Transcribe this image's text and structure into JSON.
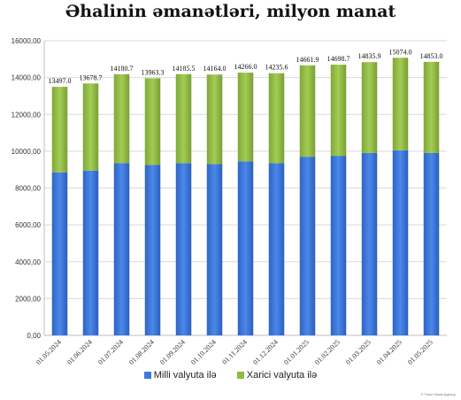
{
  "chart_data": {
    "type": "bar",
    "stacked": true,
    "title": "Əhalinin əmanətləri, milyon manat",
    "categories": [
      "01.05.2024",
      "01.06.2024",
      "01.07.2024",
      "01.08.2024",
      "01.09.2024",
      "01.10.2024",
      "01.11.2024",
      "01.12.2024",
      "01.01.2025",
      "01.02.2025",
      "01.03.2025",
      "01.04.2025",
      "01.05.2025"
    ],
    "series": [
      {
        "name": "Milli valyuta ilə",
        "color": "#3d7ae0",
        "values": [
          8850,
          8950,
          9350,
          9250,
          9350,
          9300,
          9450,
          9350,
          9700,
          9750,
          9900,
          10050,
          9900
        ]
      },
      {
        "name": "Xarici valyuta ilə",
        "color": "#8fbc3f",
        "values": [
          4647,
          4728.7,
          4830.7,
          4713.3,
          4835.5,
          4864,
          4816,
          4885.6,
          4961.9,
          4948.7,
          4935.9,
          5024,
          4953
        ]
      }
    ],
    "totals": [
      "13497.0",
      "13678.7",
      "14180.7",
      "13963.3",
      "14185.5",
      "14164.0",
      "14266.0",
      "14235.6",
      "14661.9",
      "14698.7",
      "14835.9",
      "15074.0",
      "14853.0"
    ],
    "yticks": [
      "0,00",
      "2000,00",
      "4000,00",
      "6000,00",
      "8000,00",
      "10000,00",
      "12000,00",
      "14000,00",
      "16000,00"
    ],
    "ylim": [
      0,
      16000
    ],
    "grid": true,
    "legend_position": "bottom"
  },
  "watermark": "© Trend News Agency"
}
